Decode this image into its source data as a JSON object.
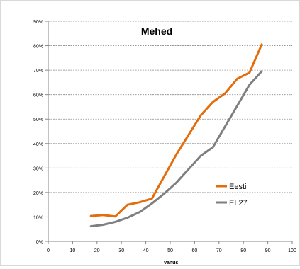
{
  "chart_data": {
    "type": "line",
    "title": "Mehed",
    "xlabel": "Vanus",
    "ylabel": "",
    "xlim": [
      0,
      100
    ],
    "ylim": [
      0,
      0.9
    ],
    "x_ticks": [
      0,
      10,
      20,
      30,
      40,
      50,
      60,
      70,
      80,
      90,
      100
    ],
    "x_tick_labels": [
      "0",
      "10",
      "20",
      "30",
      "40",
      "50",
      "60",
      "70",
      "80",
      "90",
      "100"
    ],
    "y_ticks": [
      0,
      0.1,
      0.2,
      0.3,
      0.4,
      0.5,
      0.6,
      0.7,
      0.8,
      0.9
    ],
    "y_tick_labels": [
      "0%",
      "10%",
      "20%",
      "30%",
      "40%",
      "50%",
      "60%",
      "70%",
      "80%",
      "90%"
    ],
    "grid": "horizontal-dashed",
    "legend_position": "lower-right",
    "x": [
      17.5,
      22.5,
      27.5,
      32.5,
      37.5,
      42.5,
      47.5,
      52.5,
      57.5,
      62.5,
      67.5,
      72.5,
      77.5,
      82.5,
      87.5
    ],
    "series": [
      {
        "name": "Eesti",
        "color": "#e46c0a",
        "values": [
          0.104,
          0.108,
          0.102,
          0.15,
          0.16,
          0.175,
          0.265,
          0.355,
          0.435,
          0.515,
          0.57,
          0.605,
          0.665,
          0.69,
          0.805
        ]
      },
      {
        "name": "EL27",
        "color": "#7f7f7f",
        "values": [
          0.062,
          0.068,
          0.08,
          0.097,
          0.12,
          0.155,
          0.195,
          0.24,
          0.295,
          0.35,
          0.385,
          0.47,
          0.555,
          0.64,
          0.695
        ]
      }
    ]
  }
}
